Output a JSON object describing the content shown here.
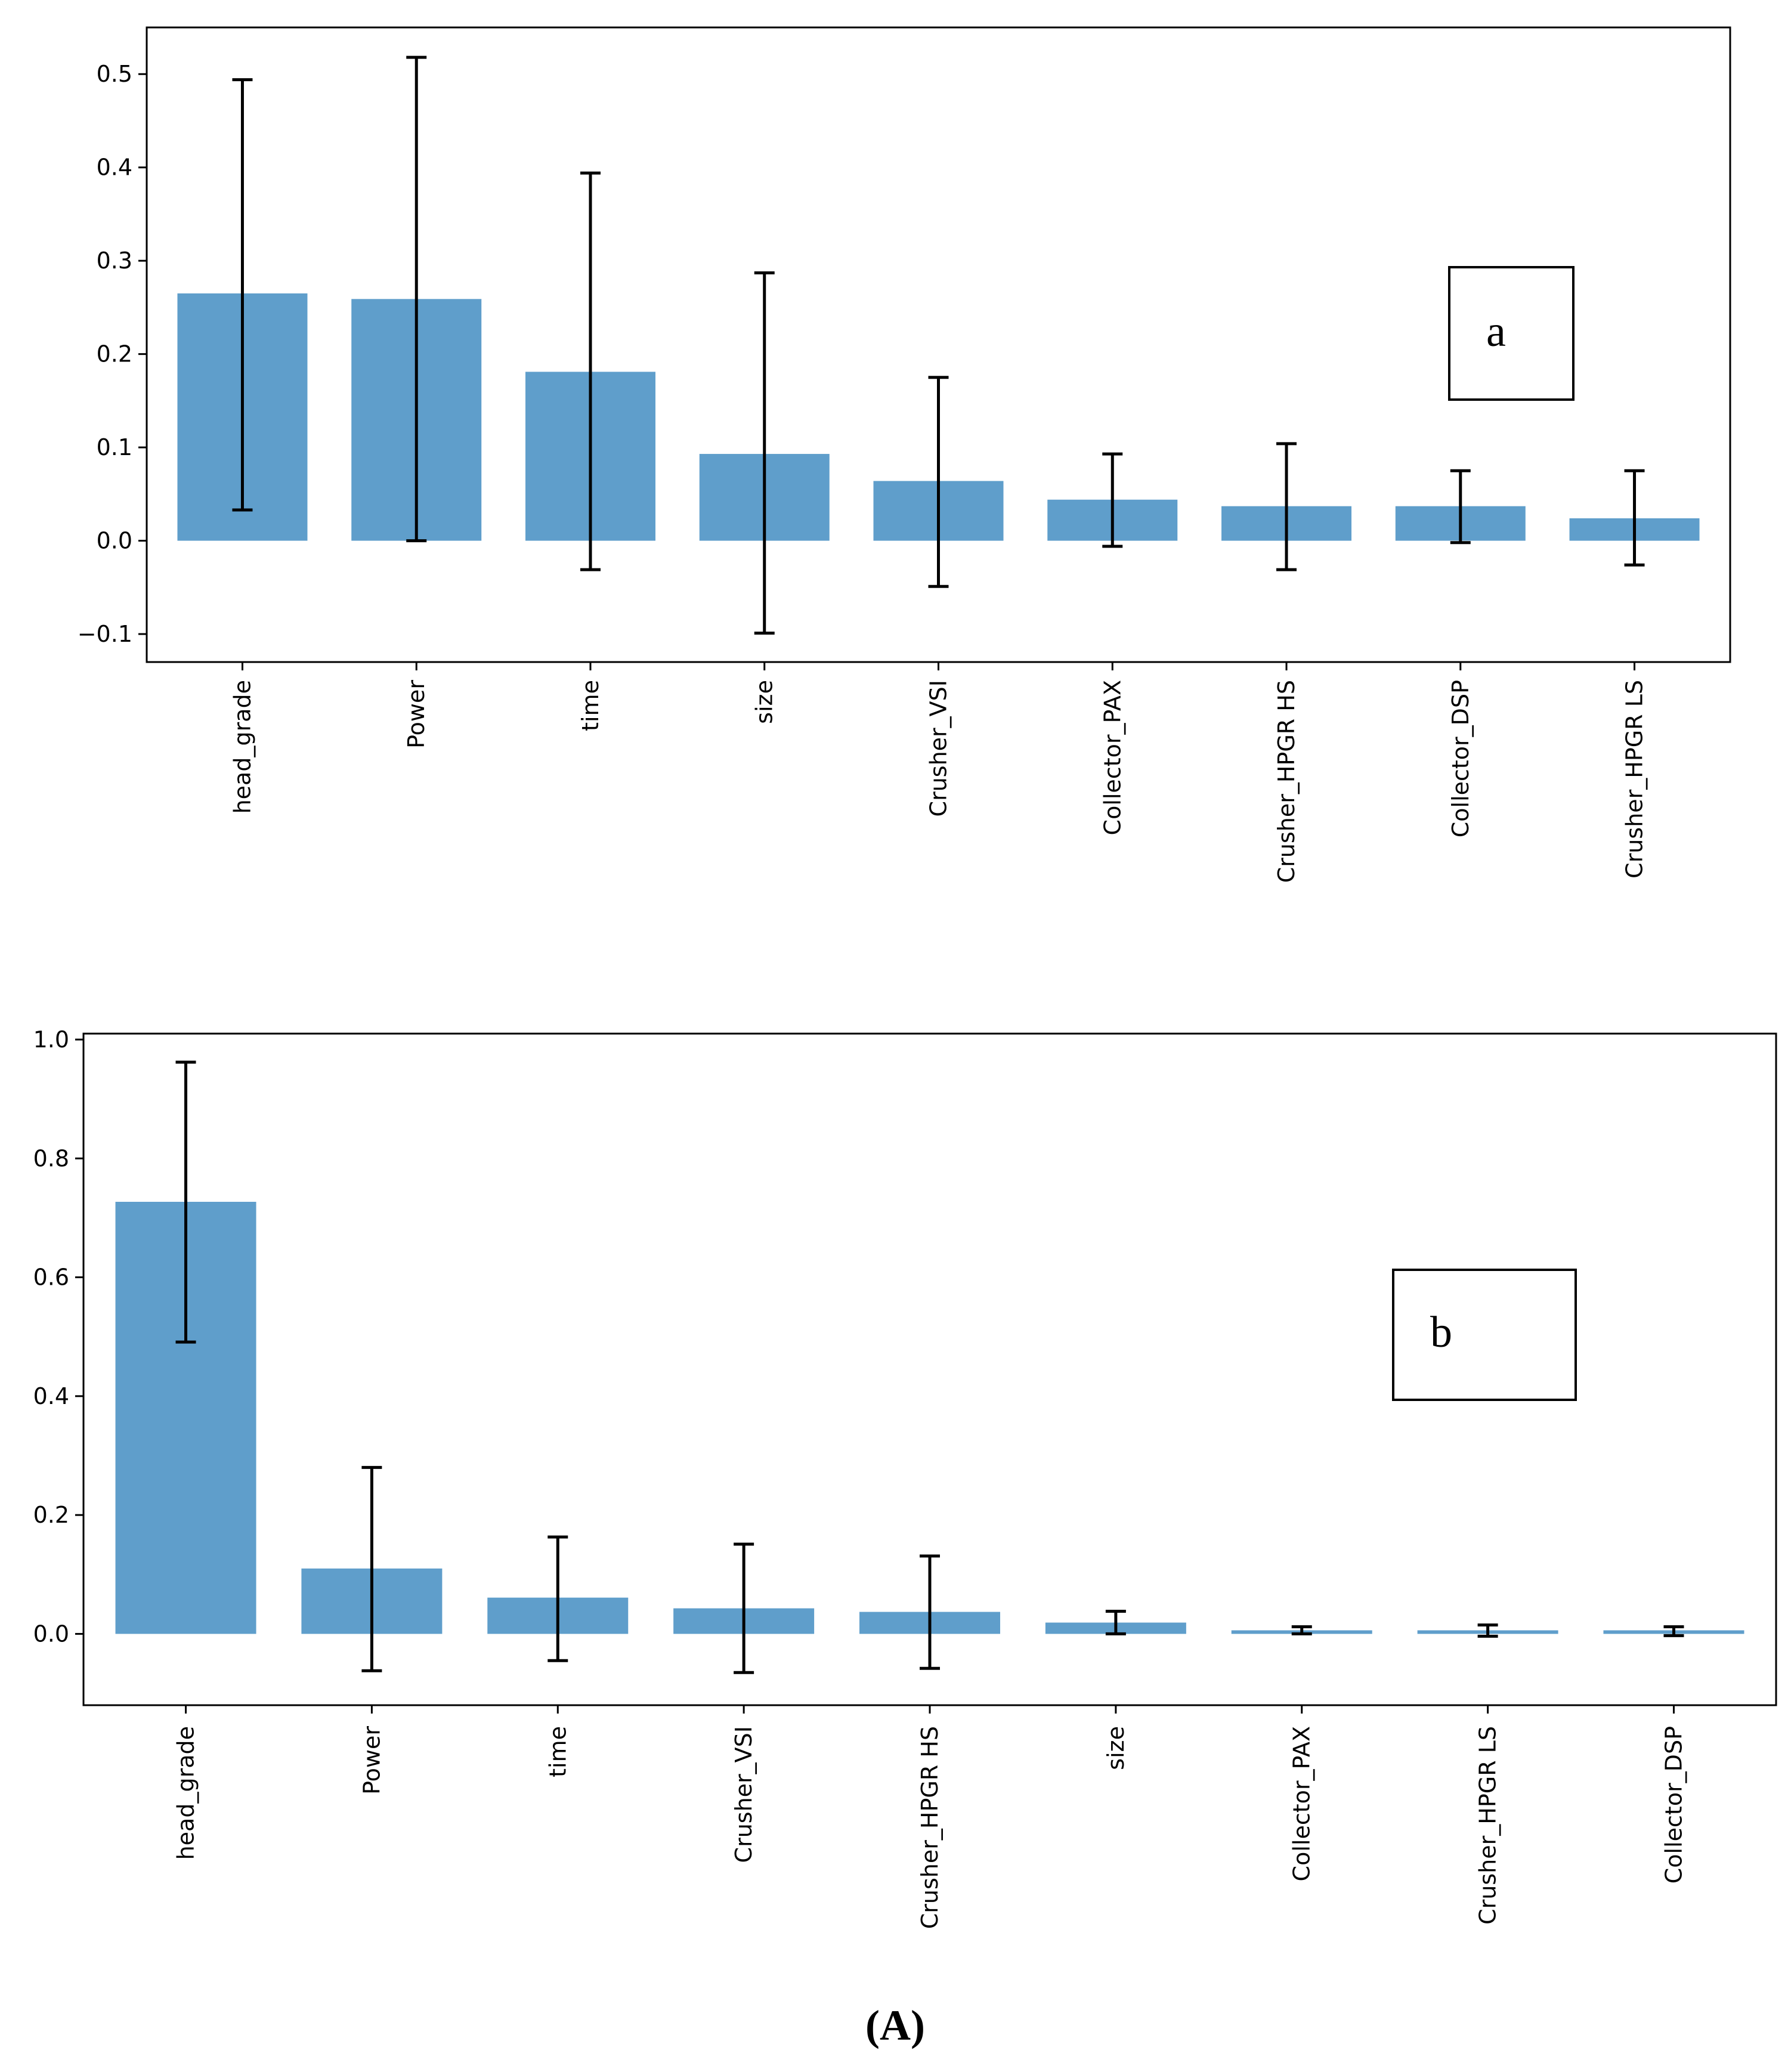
{
  "chart_data": [
    {
      "type": "bar",
      "panel_label": "a",
      "categories": [
        "head_grade",
        "Power",
        "time",
        "size",
        "Crusher_VSI",
        "Collector_PAX",
        "Crusher_HPGR HS",
        "Collector_DSP",
        "Crusher_HPGR LS"
      ],
      "values": [
        0.265,
        0.259,
        0.181,
        0.093,
        0.064,
        0.044,
        0.037,
        0.037,
        0.024
      ],
      "error_low": [
        0.033,
        0.0,
        -0.031,
        -0.099,
        -0.049,
        -0.006,
        -0.031,
        -0.002,
        -0.026
      ],
      "error_high": [
        0.494,
        0.518,
        0.394,
        0.287,
        0.175,
        0.093,
        0.104,
        0.075,
        0.075
      ],
      "ylim": [
        -0.13,
        0.55
      ],
      "yticks": [
        -0.1,
        0.0,
        0.1,
        0.2,
        0.3,
        0.4,
        0.5
      ],
      "ytick_labels": [
        "−0.1",
        "0.0",
        "0.1",
        "0.2",
        "0.3",
        "0.4",
        "0.5"
      ],
      "bar_color": "#5f9ecb",
      "title": "",
      "xlabel": "",
      "ylabel": ""
    },
    {
      "type": "bar",
      "panel_label": "b",
      "categories": [
        "head_grade",
        "Power",
        "time",
        "Crusher_VSI",
        "Crusher_HPGR HS",
        "size",
        "Collector_PAX",
        "Crusher_HPGR LS",
        "Collector_DSP"
      ],
      "values": [
        0.727,
        0.11,
        0.061,
        0.043,
        0.037,
        0.019,
        0.006,
        0.006,
        0.006
      ],
      "error_low": [
        0.491,
        -0.062,
        -0.045,
        -0.065,
        -0.058,
        0.0,
        0.0,
        -0.004,
        -0.003
      ],
      "error_high": [
        0.962,
        0.28,
        0.163,
        0.151,
        0.131,
        0.038,
        0.012,
        0.015,
        0.012
      ],
      "ylim": [
        -0.12,
        1.01
      ],
      "yticks": [
        0.0,
        0.2,
        0.4,
        0.6,
        0.8,
        1.0
      ],
      "ytick_labels": [
        "0.0",
        "0.2",
        "0.4",
        "0.6",
        "0.8",
        "1.0"
      ],
      "bar_color": "#5f9ecb",
      "title": "",
      "xlabel": "",
      "ylabel": ""
    }
  ],
  "caption": "(A)"
}
